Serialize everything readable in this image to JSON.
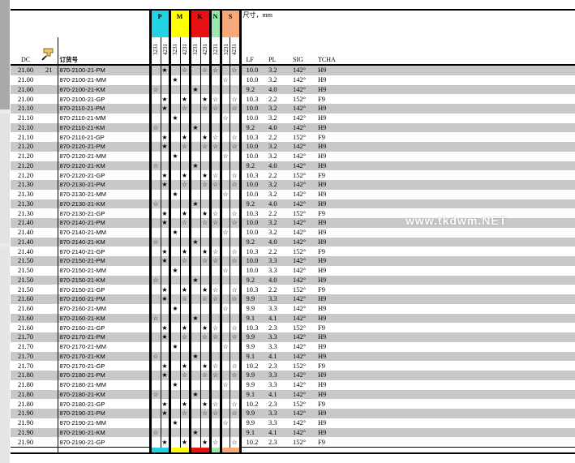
{
  "header": {
    "dimension_label": "尺寸，mm",
    "col_dc": "DC",
    "col_order": "订货号",
    "col_lf": "LF",
    "col_pl": "PL",
    "col_sig": "SIG",
    "col_tcha": "TCHA",
    "first_row_extra": "21",
    "icon": "drill-holder-icon",
    "groups": [
      {
        "label": "P",
        "color": "#22d3e6"
      },
      {
        "label": "M",
        "color": "#ffff00"
      },
      {
        "label": "K",
        "color": "#e81010"
      },
      {
        "label": "N",
        "color": "#9de8b0"
      },
      {
        "label": "S",
        "color": "#f7a97a"
      }
    ],
    "grade_labels": [
      "3231",
      "4231",
      "3231",
      "4231",
      "3231",
      "4231",
      "3231",
      "3231",
      "4231"
    ]
  },
  "watermark": "www.tkdwm.NET",
  "rows": [
    {
      "dc": "21.00",
      "order": "870-2100-21-PM",
      "marks": [
        "",
        "★",
        "",
        "☆",
        "",
        "☆",
        "☆",
        "",
        "☆"
      ],
      "lf": "10.0",
      "pl": "3.2",
      "sig": "142°",
      "tcha": "H9"
    },
    {
      "dc": "21.00",
      "order": "870-2100-21-MM",
      "marks": [
        "",
        "",
        "★",
        "",
        "",
        "",
        "",
        "☆",
        ""
      ],
      "lf": "10.0",
      "pl": "3.2",
      "sig": "142°",
      "tcha": "H9"
    },
    {
      "dc": "21.00",
      "order": "870-2100-21-KM",
      "marks": [
        "☆",
        "",
        "",
        "",
        "★",
        "",
        "",
        "",
        ""
      ],
      "lf": "9.2",
      "pl": "4.0",
      "sig": "142°",
      "tcha": "H9"
    },
    {
      "dc": "21.00",
      "order": "870-2100-21-GP",
      "marks": [
        "",
        "★",
        "",
        "★",
        "",
        "★",
        "☆",
        "",
        "☆"
      ],
      "lf": "10.3",
      "pl": "2.2",
      "sig": "152°",
      "tcha": "F9"
    },
    {
      "dc": "21.10",
      "order": "870-2110-21-PM",
      "marks": [
        "",
        "★",
        "",
        "☆",
        "",
        "☆",
        "☆",
        "",
        "☆"
      ],
      "lf": "10.0",
      "pl": "3.2",
      "sig": "142°",
      "tcha": "H9"
    },
    {
      "dc": "21.10",
      "order": "870-2110-21-MM",
      "marks": [
        "",
        "",
        "★",
        "",
        "",
        "",
        "",
        "☆",
        ""
      ],
      "lf": "10.0",
      "pl": "3.2",
      "sig": "142°",
      "tcha": "H9"
    },
    {
      "dc": "21.10",
      "order": "870-2110-21-KM",
      "marks": [
        "☆",
        "",
        "",
        "",
        "★",
        "",
        "",
        "",
        ""
      ],
      "lf": "9.2",
      "pl": "4.0",
      "sig": "142°",
      "tcha": "H9"
    },
    {
      "dc": "21.10",
      "order": "870-2110-21-GP",
      "marks": [
        "",
        "★",
        "",
        "★",
        "",
        "★",
        "☆",
        "",
        "☆"
      ],
      "lf": "10.3",
      "pl": "2.2",
      "sig": "152°",
      "tcha": "F9"
    },
    {
      "dc": "21.20",
      "order": "870-2120-21-PM",
      "marks": [
        "",
        "★",
        "",
        "☆",
        "",
        "☆",
        "☆",
        "",
        "☆"
      ],
      "lf": "10.0",
      "pl": "3.2",
      "sig": "142°",
      "tcha": "H9"
    },
    {
      "dc": "21.20",
      "order": "870-2120-21-MM",
      "marks": [
        "",
        "",
        "★",
        "",
        "",
        "",
        "",
        "☆",
        ""
      ],
      "lf": "10.0",
      "pl": "3.2",
      "sig": "142°",
      "tcha": "H9"
    },
    {
      "dc": "21.20",
      "order": "870-2120-21-KM",
      "marks": [
        "☆",
        "",
        "",
        "",
        "★",
        "",
        "",
        "",
        ""
      ],
      "lf": "9.2",
      "pl": "4.0",
      "sig": "142°",
      "tcha": "H9"
    },
    {
      "dc": "21.20",
      "order": "870-2120-21-GP",
      "marks": [
        "",
        "★",
        "",
        "★",
        "",
        "★",
        "☆",
        "",
        "☆"
      ],
      "lf": "10.3",
      "pl": "2.2",
      "sig": "152°",
      "tcha": "F9"
    },
    {
      "dc": "21.30",
      "order": "870-2130-21-PM",
      "marks": [
        "",
        "★",
        "",
        "☆",
        "",
        "☆",
        "☆",
        "",
        "☆"
      ],
      "lf": "10.0",
      "pl": "3.2",
      "sig": "142°",
      "tcha": "H9"
    },
    {
      "dc": "21.30",
      "order": "870-2130-21-MM",
      "marks": [
        "",
        "",
        "★",
        "",
        "",
        "",
        "",
        "☆",
        ""
      ],
      "lf": "10.0",
      "pl": "3.2",
      "sig": "142°",
      "tcha": "H9"
    },
    {
      "dc": "21.30",
      "order": "870-2130-21-KM",
      "marks": [
        "☆",
        "",
        "",
        "",
        "★",
        "",
        "",
        "",
        ""
      ],
      "lf": "9.2",
      "pl": "4.0",
      "sig": "142°",
      "tcha": "H9"
    },
    {
      "dc": "21.30",
      "order": "870-2130-21-GP",
      "marks": [
        "",
        "★",
        "",
        "★",
        "",
        "★",
        "☆",
        "",
        "☆"
      ],
      "lf": "10.3",
      "pl": "2.2",
      "sig": "152°",
      "tcha": "F9"
    },
    {
      "dc": "21.40",
      "order": "870-2140-21-PM",
      "marks": [
        "",
        "★",
        "",
        "☆",
        "",
        "☆",
        "☆",
        "",
        "☆"
      ],
      "lf": "10.0",
      "pl": "3.2",
      "sig": "142°",
      "tcha": "H9"
    },
    {
      "dc": "21.40",
      "order": "870-2140-21-MM",
      "marks": [
        "",
        "",
        "★",
        "",
        "",
        "",
        "",
        "☆",
        ""
      ],
      "lf": "10.0",
      "pl": "3.2",
      "sig": "142°",
      "tcha": "H9"
    },
    {
      "dc": "21.40",
      "order": "870-2140-21-KM",
      "marks": [
        "☆",
        "",
        "",
        "",
        "★",
        "",
        "",
        "",
        ""
      ],
      "lf": "9.2",
      "pl": "4.0",
      "sig": "142°",
      "tcha": "H9"
    },
    {
      "dc": "21.40",
      "order": "870-2140-21-GP",
      "marks": [
        "",
        "★",
        "",
        "★",
        "",
        "★",
        "☆",
        "",
        "☆"
      ],
      "lf": "10.3",
      "pl": "2.2",
      "sig": "152°",
      "tcha": "F9"
    },
    {
      "dc": "21.50",
      "order": "870-2150-21-PM",
      "marks": [
        "",
        "★",
        "",
        "☆",
        "",
        "☆",
        "☆",
        "",
        "☆"
      ],
      "lf": "10.0",
      "pl": "3.3",
      "sig": "142°",
      "tcha": "H9"
    },
    {
      "dc": "21.50",
      "order": "870-2150-21-MM",
      "marks": [
        "",
        "",
        "★",
        "",
        "",
        "",
        "",
        "☆",
        ""
      ],
      "lf": "10.0",
      "pl": "3.3",
      "sig": "142°",
      "tcha": "H9"
    },
    {
      "dc": "21.50",
      "order": "870-2150-21-KM",
      "marks": [
        "☆",
        "",
        "",
        "",
        "★",
        "",
        "",
        "",
        ""
      ],
      "lf": "9.2",
      "pl": "4.0",
      "sig": "142°",
      "tcha": "H9"
    },
    {
      "dc": "21.50",
      "order": "870-2150-21-GP",
      "marks": [
        "",
        "★",
        "",
        "★",
        "",
        "★",
        "☆",
        "",
        "☆"
      ],
      "lf": "10.3",
      "pl": "2.2",
      "sig": "152°",
      "tcha": "F9"
    },
    {
      "dc": "21.60",
      "order": "870-2160-21-PM",
      "marks": [
        "",
        "★",
        "",
        "☆",
        "",
        "☆",
        "☆",
        "",
        "☆"
      ],
      "lf": "9.9",
      "pl": "3.3",
      "sig": "142°",
      "tcha": "H9"
    },
    {
      "dc": "21.60",
      "order": "870-2160-21-MM",
      "marks": [
        "",
        "",
        "★",
        "",
        "",
        "",
        "",
        "☆",
        ""
      ],
      "lf": "9.9",
      "pl": "3.3",
      "sig": "142°",
      "tcha": "H9"
    },
    {
      "dc": "21.60",
      "order": "870-2160-21-KM",
      "marks": [
        "☆",
        "",
        "",
        "",
        "★",
        "",
        "",
        "",
        ""
      ],
      "lf": "9.1",
      "pl": "4.1",
      "sig": "142°",
      "tcha": "H9"
    },
    {
      "dc": "21.60",
      "order": "870-2160-21-GP",
      "marks": [
        "",
        "★",
        "",
        "★",
        "",
        "★",
        "☆",
        "",
        "☆"
      ],
      "lf": "10.3",
      "pl": "2.3",
      "sig": "152°",
      "tcha": "F9"
    },
    {
      "dc": "21.70",
      "order": "870-2170-21-PM",
      "marks": [
        "",
        "★",
        "",
        "☆",
        "",
        "☆",
        "☆",
        "",
        "☆"
      ],
      "lf": "9.9",
      "pl": "3.3",
      "sig": "142°",
      "tcha": "H9"
    },
    {
      "dc": "21.70",
      "order": "870-2170-21-MM",
      "marks": [
        "",
        "",
        "★",
        "",
        "",
        "",
        "",
        "☆",
        ""
      ],
      "lf": "9.9",
      "pl": "3.3",
      "sig": "142°",
      "tcha": "H9"
    },
    {
      "dc": "21.70",
      "order": "870-2170-21-KM",
      "marks": [
        "☆",
        "",
        "",
        "",
        "★",
        "",
        "",
        "",
        ""
      ],
      "lf": "9.1",
      "pl": "4.1",
      "sig": "142°",
      "tcha": "H9"
    },
    {
      "dc": "21.70",
      "order": "870-2170-21-GP",
      "marks": [
        "",
        "★",
        "",
        "★",
        "",
        "★",
        "☆",
        "",
        "☆"
      ],
      "lf": "10.2",
      "pl": "2.3",
      "sig": "152°",
      "tcha": "F9"
    },
    {
      "dc": "21.80",
      "order": "870-2180-21-PM",
      "marks": [
        "",
        "★",
        "",
        "☆",
        "",
        "☆",
        "☆",
        "",
        "☆"
      ],
      "lf": "9.9",
      "pl": "3.3",
      "sig": "142°",
      "tcha": "H9"
    },
    {
      "dc": "21.80",
      "order": "870-2180-21-MM",
      "marks": [
        "",
        "",
        "★",
        "",
        "",
        "",
        "",
        "☆",
        ""
      ],
      "lf": "9.9",
      "pl": "3.3",
      "sig": "142°",
      "tcha": "H9"
    },
    {
      "dc": "21.80",
      "order": "870-2180-21-KM",
      "marks": [
        "☆",
        "",
        "",
        "",
        "★",
        "",
        "",
        "",
        ""
      ],
      "lf": "9.1",
      "pl": "4.1",
      "sig": "142°",
      "tcha": "H9"
    },
    {
      "dc": "21.80",
      "order": "870-2180-21-GP",
      "marks": [
        "",
        "★",
        "",
        "★",
        "",
        "★",
        "☆",
        "",
        "☆"
      ],
      "lf": "10.2",
      "pl": "2.3",
      "sig": "152°",
      "tcha": "F9"
    },
    {
      "dc": "21.90",
      "order": "870-2190-21-PM",
      "marks": [
        "",
        "★",
        "",
        "☆",
        "",
        "☆",
        "☆",
        "",
        "☆"
      ],
      "lf": "9.9",
      "pl": "3.3",
      "sig": "142°",
      "tcha": "H9"
    },
    {
      "dc": "21.90",
      "order": "870-2190-21-MM",
      "marks": [
        "",
        "",
        "★",
        "",
        "",
        "",
        "",
        "☆",
        ""
      ],
      "lf": "9.9",
      "pl": "3.3",
      "sig": "142°",
      "tcha": "H9"
    },
    {
      "dc": "21.90",
      "order": "870-2190-21-KM",
      "marks": [
        "☆",
        "",
        "",
        "",
        "★",
        "",
        "",
        "",
        ""
      ],
      "lf": "9.1",
      "pl": "4.1",
      "sig": "142°",
      "tcha": "H9"
    },
    {
      "dc": "21.90",
      "order": "870-2190-21-GP",
      "marks": [
        "",
        "★",
        "",
        "★",
        "",
        "★",
        "☆",
        "",
        "☆"
      ],
      "lf": "10.2",
      "pl": "2.3",
      "sig": "152°",
      "tcha": "F9"
    }
  ]
}
